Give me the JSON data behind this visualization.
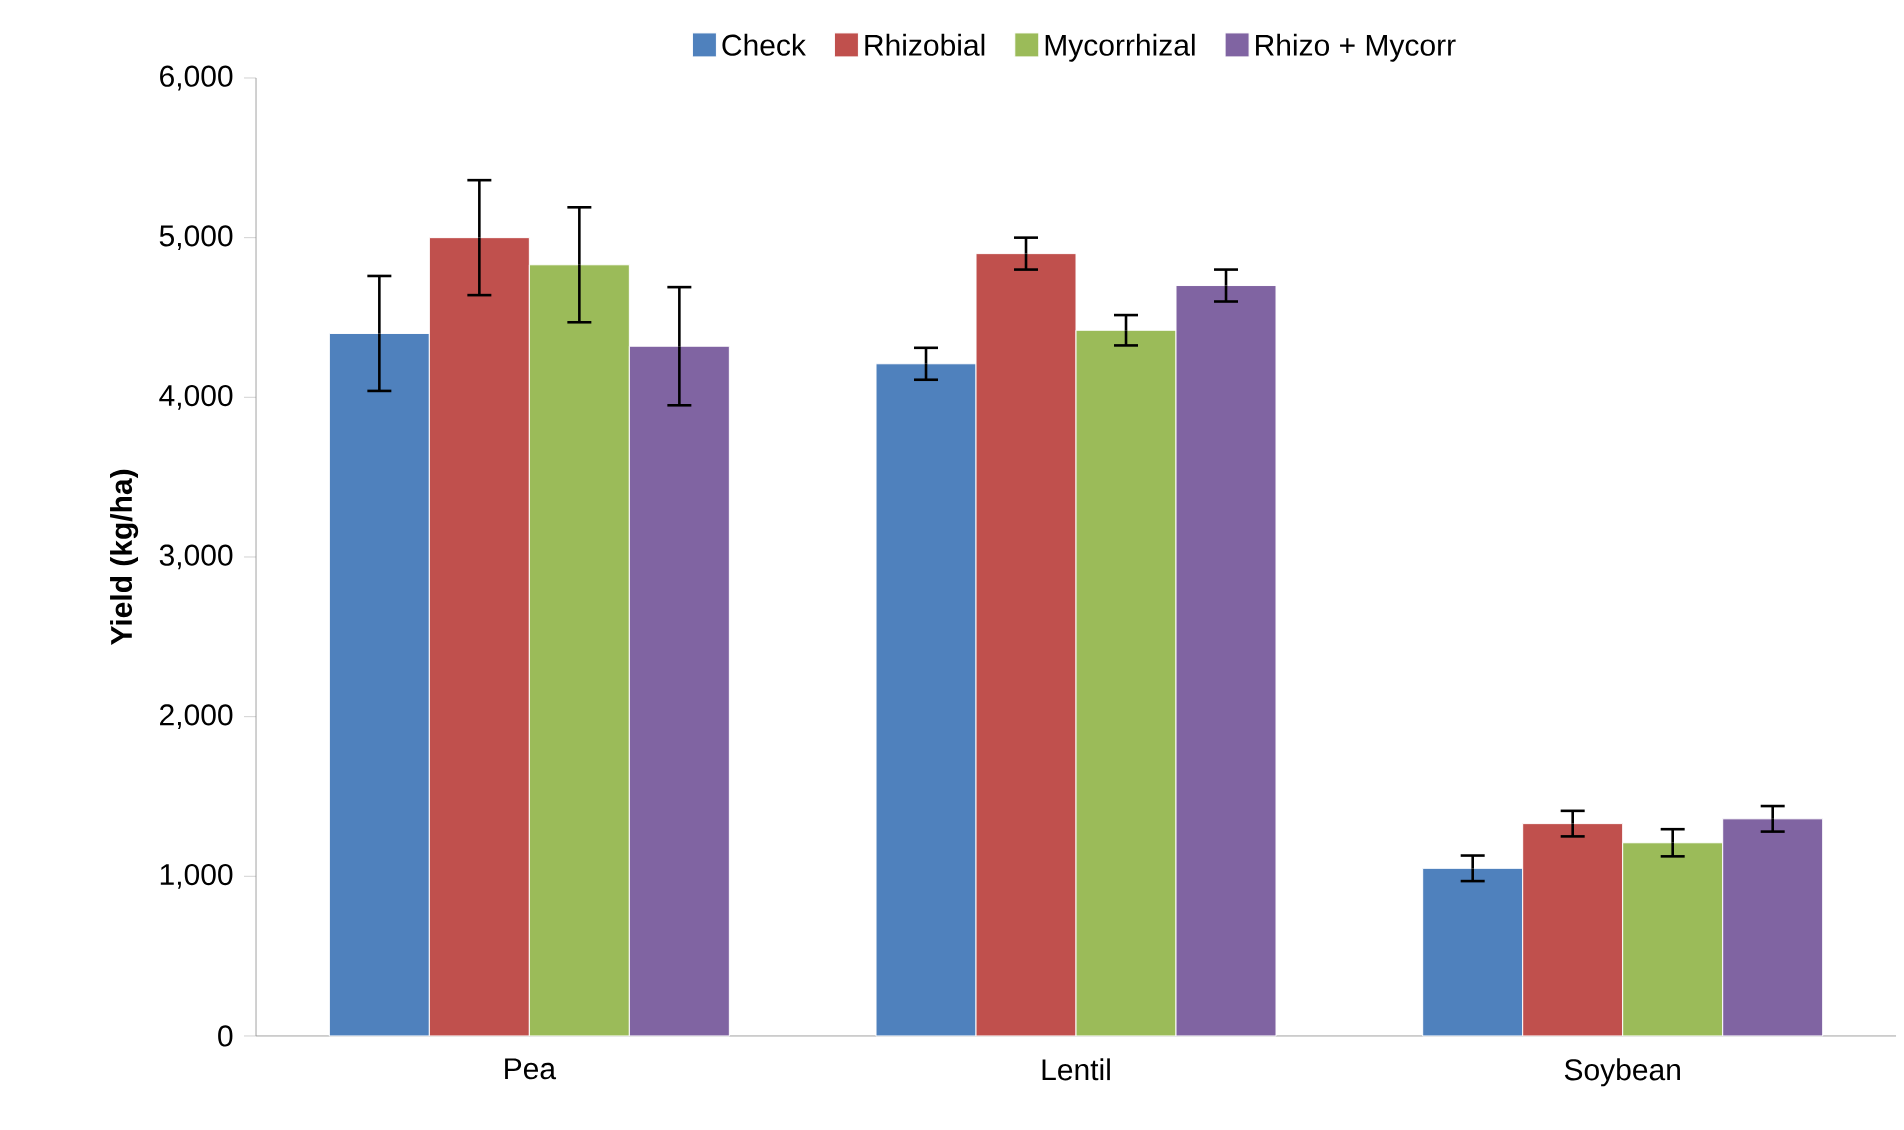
{
  "chart_data": {
    "type": "bar",
    "ylabel": "Yield (kg/ha)",
    "categories": [
      "Pea",
      "Lentil",
      "Soybean"
    ],
    "series": [
      {
        "name": "Check",
        "color": "#4f81bd",
        "values": [
          4400,
          4210,
          1050
        ],
        "errors": [
          360,
          100,
          80
        ]
      },
      {
        "name": "Rhizobial",
        "color": "#c0504d",
        "values": [
          5000,
          4900,
          1330
        ],
        "errors": [
          360,
          100,
          80
        ]
      },
      {
        "name": "Mycorrhizal",
        "color": "#9bbb59",
        "values": [
          4830,
          4420,
          1210
        ],
        "errors": [
          360,
          95,
          85
        ]
      },
      {
        "name": "Rhizo + Mycorr",
        "color": "#8064a2",
        "values": [
          4320,
          4700,
          1360
        ],
        "errors": [
          370,
          100,
          80
        ]
      }
    ],
    "ylim": [
      0,
      6000
    ],
    "yticks": [
      {
        "value": 0,
        "label": "0"
      },
      {
        "value": 1000,
        "label": "1,000"
      },
      {
        "value": 2000,
        "label": "2,000"
      },
      {
        "value": 3000,
        "label": "3,000"
      },
      {
        "value": 4000,
        "label": "4,000"
      },
      {
        "value": 5000,
        "label": "5,000"
      },
      {
        "value": 6000,
        "label": "6,000"
      }
    ],
    "legend": "top",
    "grid": false
  }
}
